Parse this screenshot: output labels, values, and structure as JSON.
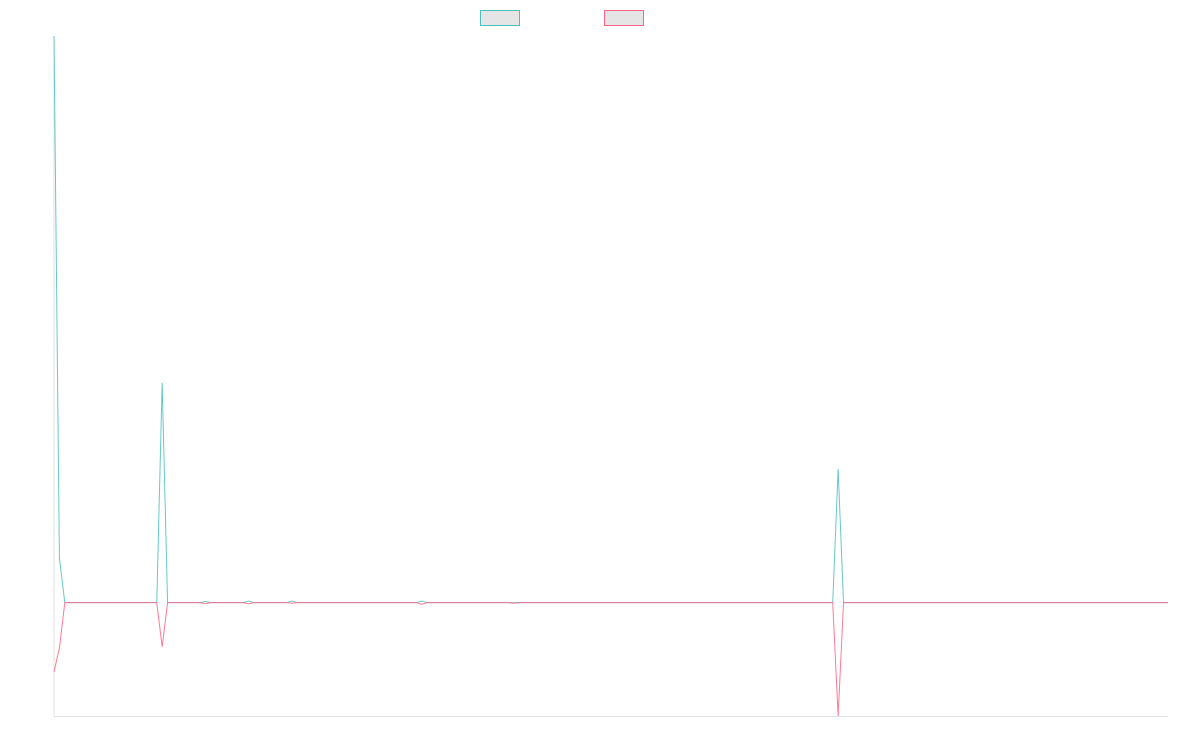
{
  "chart_data": {
    "type": "line",
    "title": "",
    "xlabel": "",
    "ylabel": "",
    "ylim": [
      -20,
      100
    ],
    "grid": false,
    "legend_placement": "top",
    "point_count": 207,
    "series": [
      {
        "label": "",
        "color": "#4bc0c0",
        "values": [
          100,
          7.8,
          0,
          0,
          0,
          0,
          0,
          0,
          0,
          0,
          0,
          0,
          0,
          0,
          0,
          0,
          0,
          0,
          0,
          0,
          38.8,
          0,
          0,
          0,
          0,
          0,
          0,
          0,
          0.2,
          0,
          0,
          0,
          0,
          0,
          0,
          0,
          0.3,
          0,
          0,
          0,
          0,
          0,
          0,
          0,
          0.3,
          0,
          0,
          0,
          0,
          0,
          0,
          0,
          0,
          0,
          0,
          0,
          0,
          0,
          0,
          0,
          0,
          0,
          0,
          0,
          0,
          0,
          0,
          0,
          0.3,
          0,
          0,
          0,
          0,
          0,
          0,
          0,
          0,
          0,
          0,
          0,
          0,
          0,
          0,
          0,
          0,
          0,
          0,
          0,
          0,
          0,
          0,
          0,
          0,
          0,
          0,
          0,
          0,
          0,
          0,
          0,
          0,
          0,
          0,
          0,
          0,
          0,
          0,
          0,
          0,
          0,
          0,
          0,
          0,
          0,
          0,
          0,
          0,
          0,
          0,
          0,
          0,
          0,
          0,
          0,
          0,
          0,
          0,
          0,
          0,
          0,
          0,
          0,
          0,
          0,
          0,
          0,
          0,
          0,
          0,
          0,
          0,
          0,
          0,
          0,
          0,
          23.6,
          0,
          0,
          0,
          0,
          0,
          0,
          0,
          0,
          0,
          0,
          0,
          0,
          0,
          0,
          0,
          0,
          0,
          0,
          0,
          0,
          0,
          0,
          0,
          0,
          0,
          0,
          0,
          0,
          0,
          0,
          0,
          0,
          0,
          0,
          0,
          0,
          0,
          0,
          0,
          0,
          0,
          0,
          0,
          0,
          0,
          0,
          0,
          0,
          0,
          0,
          0,
          0,
          0,
          0,
          0,
          0,
          0,
          0,
          0,
          0,
          0
        ]
      },
      {
        "label": "",
        "color": "#ff6384",
        "values": [
          -12.2,
          -8,
          0,
          0,
          0,
          0,
          0,
          0,
          0,
          0,
          0,
          0,
          0,
          0,
          0,
          0,
          0,
          0,
          0,
          0,
          -7.8,
          0,
          0,
          0,
          0,
          0,
          0,
          0,
          -0.2,
          0,
          0,
          0,
          0,
          0,
          0,
          0,
          -0.2,
          0,
          0,
          0,
          0,
          0,
          0,
          0,
          -0.1,
          0,
          0,
          0,
          0,
          0,
          0,
          0,
          0,
          0,
          0,
          0,
          0,
          0,
          0,
          0,
          0,
          0,
          0,
          0,
          0,
          0,
          0,
          0,
          -0.3,
          0,
          0,
          0,
          0,
          0,
          0,
          0,
          0,
          0,
          0,
          0,
          0,
          0,
          0,
          0,
          0,
          -0.1,
          0,
          0,
          0,
          0,
          0,
          0,
          0,
          0,
          0,
          0,
          0,
          0,
          0,
          0,
          0,
          0,
          0,
          0,
          0,
          0,
          0,
          0,
          0,
          0,
          0,
          0,
          0,
          0,
          0,
          0,
          0,
          0,
          0,
          0,
          0,
          0,
          0,
          0,
          0,
          0,
          0,
          0,
          0,
          0,
          0,
          0,
          0,
          0,
          0,
          0,
          0,
          0,
          0,
          0,
          0,
          0,
          0,
          0,
          0,
          -20,
          0,
          0,
          0,
          0,
          0,
          0,
          0,
          0,
          0,
          0,
          0,
          0,
          0,
          0,
          0,
          0,
          0,
          0,
          0,
          0,
          0,
          0,
          0,
          0,
          0,
          0,
          0,
          0,
          0,
          0,
          0,
          0,
          0,
          0,
          0,
          0,
          0,
          0,
          0,
          0,
          0,
          0,
          0,
          0,
          0,
          0,
          0,
          0,
          0,
          0,
          0,
          0,
          0,
          0,
          0,
          0,
          0,
          0,
          0,
          0,
          0
        ]
      }
    ]
  }
}
